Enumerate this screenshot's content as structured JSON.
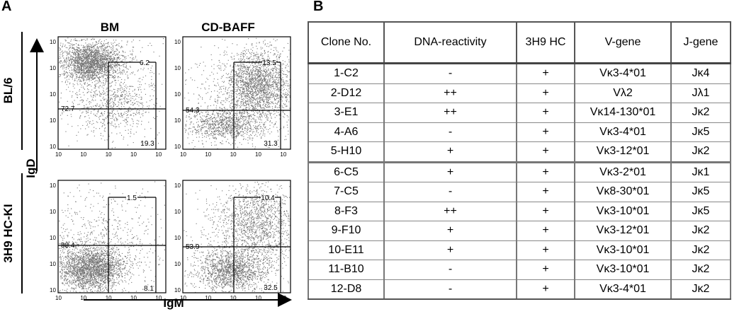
{
  "panel_a": {
    "letter": "A",
    "col_labels": [
      "BM",
      "CD-BAFF"
    ],
    "row_labels": [
      "BL/6",
      "3H9 HC-KI"
    ],
    "y_axis_label": "IgD",
    "x_axis_label": "IgM",
    "plots": [
      {
        "id": "bl6-bm",
        "gate_top": "6.2",
        "gate_left": "72.7",
        "gate_right": "19.3"
      },
      {
        "id": "bl6-cdbaff",
        "gate_top": "13.5",
        "gate_left": "54.3",
        "gate_right": "31.3"
      },
      {
        "id": "3h9-bm",
        "gate_top": "1.5",
        "gate_left": "88.4",
        "gate_right": "8.1"
      },
      {
        "id": "3h9-cdbaff",
        "gate_top": "10.4",
        "gate_left": "53.9",
        "gate_right": "32.5"
      }
    ]
  },
  "panel_b": {
    "letter": "B",
    "headers": [
      "Clone No.",
      "DNA-reactivity",
      "3H9 HC",
      "V-gene",
      "J-gene"
    ],
    "rows": [
      [
        "1-C2",
        "-",
        "+",
        "Vκ3-4*01",
        "Jκ4"
      ],
      [
        "2-D12",
        "++",
        "+",
        "Vλ2",
        "Jλ1"
      ],
      [
        "3-E1",
        "++",
        "+",
        "Vκ14-130*01",
        "Jκ2"
      ],
      [
        "4-A6",
        "-",
        "+",
        "Vκ3-4*01",
        "Jκ5"
      ],
      [
        "5-H10",
        "+",
        "+",
        "Vκ3-12*01",
        "Jκ2"
      ],
      [
        "6-C5",
        "+",
        "+",
        "Vκ3-2*01",
        "Jκ1"
      ],
      [
        "7-C5",
        "-",
        "+",
        "Vκ8-30*01",
        "Jκ5"
      ],
      [
        "8-F3",
        "++",
        "+",
        "Vκ3-10*01",
        "Jκ5"
      ],
      [
        "9-F10",
        "+",
        "+",
        "Vκ3-12*01",
        "Jκ2"
      ],
      [
        "10-E11",
        "+",
        "+",
        "Vκ3-10*01",
        "Jκ2"
      ],
      [
        "11-B10",
        "-",
        "+",
        "Vκ3-10*01",
        "Jκ2"
      ],
      [
        "12-D8",
        "-",
        "+",
        "Vκ3-4*01",
        "Jκ2"
      ]
    ]
  }
}
